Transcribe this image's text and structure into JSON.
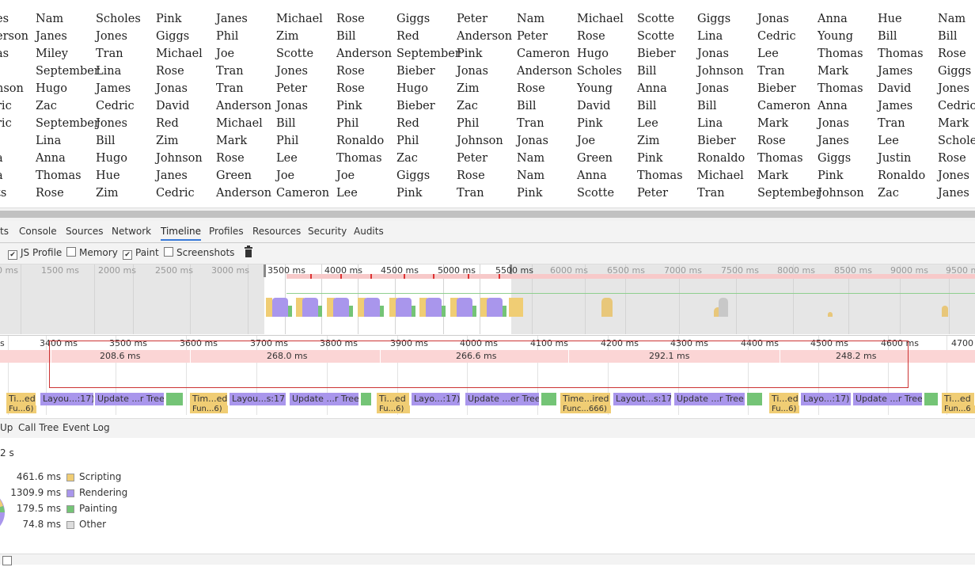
{
  "name_grid": {
    "rows": [
      [
        "es",
        "Nam",
        "Scholes",
        "Pink",
        "Janes",
        "Michael",
        "Rose",
        "Giggs",
        "Peter",
        "Nam",
        "Michael",
        "Scotte",
        "Giggs",
        "Jonas",
        "Anna",
        "Hue",
        "Nam"
      ],
      [
        "erson",
        "Janes",
        "Jones",
        "Giggs",
        "Phil",
        "Zim",
        "Bill",
        "Red",
        "Anderson",
        "Peter",
        "Rose",
        "Scotte",
        "Lina",
        "Cedric",
        "Young",
        "Bill",
        "Bill"
      ],
      [
        "as",
        "Miley",
        "Tran",
        "Michael",
        "Joe",
        "Scotte",
        "Anderson",
        "September",
        "Pink",
        "Cameron",
        "Hugo",
        "Bieber",
        "Jonas",
        "Lee",
        "Thomas",
        "Thomas",
        "Rose"
      ],
      [
        "",
        "September",
        "Lina",
        "Rose",
        "Tran",
        "Jones",
        "Rose",
        "Bieber",
        "Jonas",
        "Anderson",
        "Scholes",
        "Bill",
        "Johnson",
        "Tran",
        "Mark",
        "James",
        "Giggs"
      ],
      [
        "nson",
        "Hugo",
        "James",
        "Jonas",
        "Tran",
        "Peter",
        "Rose",
        "Hugo",
        "Zim",
        "Rose",
        "Young",
        "Anna",
        "Jonas",
        "Bieber",
        "Thomas",
        "David",
        "Jones"
      ],
      [
        "ric",
        "Zac",
        "Cedric",
        "David",
        "Anderson",
        "Jonas",
        "Pink",
        "Bieber",
        "Zac",
        "Bill",
        "David",
        "Bill",
        "Bill",
        "Cameron",
        "Anna",
        "James",
        "Cedric"
      ],
      [
        "ric",
        "September",
        "Jones",
        "Red",
        "Michael",
        "Bill",
        "Phil",
        "Red",
        "Phil",
        "Tran",
        "Pink",
        "Lee",
        "Lina",
        "Mark",
        "Jonas",
        "Tran",
        "Mark"
      ],
      [
        "",
        "Lina",
        "Bill",
        "Zim",
        "Mark",
        "Phil",
        "Ronaldo",
        "Phil",
        "Johnson",
        "Jonas",
        "Joe",
        "Zim",
        "Bieber",
        "Rose",
        "Janes",
        "Lee",
        "Schole"
      ],
      [
        "a",
        "Anna",
        "Hugo",
        "Johnson",
        "Rose",
        "Lee",
        "Thomas",
        "Zac",
        "Peter",
        "Nam",
        "Green",
        "Pink",
        "Ronaldo",
        "Thomas",
        "Giggs",
        "Justin",
        "Rose"
      ],
      [
        "a",
        "Thomas",
        "Hue",
        "Janes",
        "Green",
        "Joe",
        "Joe",
        "Giggs",
        "Rose",
        "Nam",
        "Anna",
        "Thomas",
        "Michael",
        "Mark",
        "Pink",
        "Ronaldo",
        "Jones"
      ],
      [
        "ts",
        "Rose",
        "Zim",
        "Cedric",
        "Anderson",
        "Cameron",
        "Lee",
        "Pink",
        "Tran",
        "Pink",
        "Scotte",
        "Peter",
        "Tran",
        "September",
        "Johnson",
        "Zac",
        "Janes"
      ]
    ]
  },
  "devtools": {
    "tabs": [
      {
        "label": "ts",
        "active": false
      },
      {
        "label": "Console",
        "active": false
      },
      {
        "label": "Sources",
        "active": false
      },
      {
        "label": "Network",
        "active": false
      },
      {
        "label": "Timeline",
        "active": true
      },
      {
        "label": "Profiles",
        "active": false
      },
      {
        "label": "Resources",
        "active": false
      },
      {
        "label": "Security",
        "active": false
      },
      {
        "label": "Audits",
        "active": false
      }
    ],
    "options": {
      "js_profile": {
        "label": "JS Profile",
        "checked": true
      },
      "memory": {
        "label": "Memory",
        "checked": false
      },
      "paint": {
        "label": "Paint",
        "checked": true
      },
      "screenshots": {
        "label": "Screenshots",
        "checked": false
      },
      "trash_icon": "trash-icon"
    },
    "overview_ticks": [
      "0 ms",
      "1500 ms",
      "2000 ms",
      "2500 ms",
      "3000 ms",
      "3500 ms",
      "4000 ms",
      "4500 ms",
      "5000 ms",
      "5500 ms",
      "6000 ms",
      "6500 ms",
      "7000 ms",
      "7500 ms",
      "8000 ms",
      "8500 ms",
      "9000 ms",
      "9500 ms"
    ],
    "detail_ticks": [
      "s",
      "3400 ms",
      "3500 ms",
      "3600 ms",
      "3700 ms",
      "3800 ms",
      "3900 ms",
      "4000 ms",
      "4100 ms",
      "4200 ms",
      "4300 ms",
      "4400 ms",
      "4500 ms",
      "4600 ms",
      "4700"
    ],
    "frame_durations": [
      "208.6 ms",
      "268.0 ms",
      "266.6 ms",
      "292.1 ms",
      "248.2 ms"
    ],
    "records": [
      {
        "label": "Ti...ed",
        "kind": "y"
      },
      {
        "label": "Layou...:17)",
        "kind": "p"
      },
      {
        "label": "Update ...r Tree",
        "kind": "p"
      },
      {
        "label": "",
        "kind": "g"
      },
      {
        "label": "Tim...ed",
        "kind": "y"
      },
      {
        "label": "Layou...s:17)",
        "kind": "p"
      },
      {
        "label": "Update ...r Tree",
        "kind": "p"
      },
      {
        "label": "",
        "kind": "g"
      },
      {
        "label": "Ti...ed",
        "kind": "y"
      },
      {
        "label": "Layo...:17)",
        "kind": "p"
      },
      {
        "label": "Update ...er Tree",
        "kind": "p"
      },
      {
        "label": "",
        "kind": "g"
      },
      {
        "label": "Time...ired",
        "kind": "y"
      },
      {
        "label": "Layout...s:17)",
        "kind": "p"
      },
      {
        "label": "Update ...r Tree",
        "kind": "p"
      },
      {
        "label": "",
        "kind": "g"
      },
      {
        "label": "Ti...ed",
        "kind": "y"
      },
      {
        "label": "Layo...:17)",
        "kind": "p"
      },
      {
        "label": "Update ...r Tree",
        "kind": "p"
      },
      {
        "label": "",
        "kind": "g"
      },
      {
        "label": "Ti...ed",
        "kind": "y"
      }
    ],
    "sub_records": [
      "Fu...6)",
      "Fun...6)",
      "Fu...6)",
      "Func...666)",
      "Fu...6)",
      "Fun...6"
    ],
    "subtabs": [
      "Up",
      "Call Tree",
      "Event Log"
    ],
    "summary": {
      "total": "2 s",
      "items": [
        {
          "value": "461.6 ms",
          "label": "Scripting",
          "color": "#f0cd74"
        },
        {
          "value": "1309.9 ms",
          "label": "Rendering",
          "color": "#a996ec"
        },
        {
          "value": "179.5 ms",
          "label": "Painting",
          "color": "#74c476"
        },
        {
          "value": "74.8 ms",
          "label": "Other",
          "color": "#dddddd"
        }
      ]
    }
  }
}
